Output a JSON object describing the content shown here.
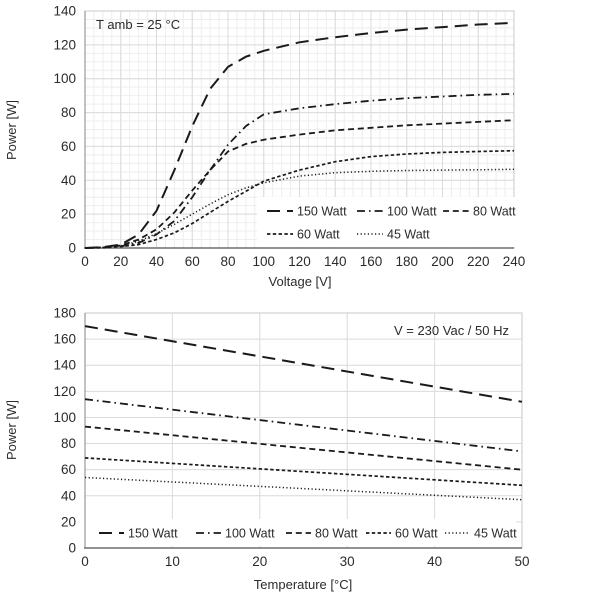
{
  "page": {
    "background": "#ffffff"
  },
  "colors": {
    "line": "#1a1a1a",
    "grid_minor": "#efedef",
    "grid_major": "#dcdadc",
    "plot_border": "#c9c9c9",
    "axis_bottom": "#6e6e6e",
    "axis_left": "#9a9a9a",
    "text": "#2b2b2b"
  },
  "chart_data": [
    {
      "type": "line",
      "title": "",
      "annotation": "T amb = 25 °C",
      "xlabel": "Voltage  [V]",
      "ylabel": "Power [W]",
      "xlim": [
        0,
        240
      ],
      "ylim": [
        0,
        140
      ],
      "xticks": [
        0,
        20,
        40,
        60,
        80,
        100,
        120,
        140,
        160,
        180,
        200,
        220,
        240
      ],
      "yticks": [
        0,
        20,
        40,
        60,
        80,
        100,
        120,
        140
      ],
      "grid": "major+minor",
      "legend_position": "inside-right-middle",
      "x": [
        0,
        10,
        20,
        30,
        40,
        50,
        60,
        70,
        80,
        90,
        100,
        120,
        140,
        160,
        180,
        200,
        220,
        240
      ],
      "series": [
        {
          "name": "150 Watt",
          "dash": "long-dash",
          "values": [
            0,
            0.5,
            2,
            8,
            22,
            46,
            72,
            94,
            107,
            113,
            116.5,
            121.5,
            124.5,
            127,
            129,
            130.5,
            132,
            133
          ]
        },
        {
          "name": "100 Watt",
          "dash": "dash-dot",
          "values": [
            0,
            0.3,
            1,
            3,
            8,
            16,
            30,
            46,
            61,
            72,
            79,
            82.5,
            85,
            87,
            88.5,
            89.5,
            90.5,
            91
          ]
        },
        {
          "name": "80 Watt",
          "dash": "dash",
          "values": [
            0,
            0.4,
            1.5,
            5,
            11,
            21,
            34,
            46,
            57,
            61.5,
            64,
            67,
            69.5,
            71,
            72.5,
            73.5,
            74.5,
            75.5
          ]
        },
        {
          "name": "60 Watt",
          "dash": "short-dash",
          "values": [
            0,
            0.2,
            0.8,
            2,
            5,
            9,
            14.5,
            21,
            27.5,
            33.5,
            39.5,
            46,
            51,
            54,
            55.5,
            56.5,
            57,
            57.5
          ]
        },
        {
          "name": "45 Watt",
          "dash": "dot",
          "values": [
            0,
            0.3,
            1.2,
            4,
            8.5,
            14,
            20,
            26,
            31.5,
            35.5,
            38.5,
            42.5,
            44.5,
            45.3,
            45.8,
            46,
            46.2,
            46.5
          ]
        }
      ]
    },
    {
      "type": "line",
      "title": "",
      "annotation": "V = 230 Vac / 50 Hz",
      "xlabel": "Temperature [°C]",
      "ylabel": "Power [W]",
      "xlim": [
        0,
        50
      ],
      "ylim": [
        0,
        180
      ],
      "xticks": [
        0,
        10,
        20,
        30,
        40,
        50
      ],
      "yticks": [
        0,
        20,
        40,
        60,
        80,
        100,
        120,
        140,
        160,
        180
      ],
      "grid": "major",
      "legend_position": "inside-bottom",
      "x": [
        0,
        50
      ],
      "series": [
        {
          "name": "150 Watt",
          "dash": "long-dash",
          "values": [
            170,
            112
          ]
        },
        {
          "name": "100 Watt",
          "dash": "dash-dot",
          "values": [
            114,
            74
          ]
        },
        {
          "name": "80 Watt",
          "dash": "dash",
          "values": [
            93,
            60
          ]
        },
        {
          "name": "60 Watt",
          "dash": "short-dash",
          "values": [
            69,
            48
          ]
        },
        {
          "name": "45 Watt",
          "dash": "dot",
          "values": [
            54,
            37
          ]
        }
      ]
    }
  ]
}
